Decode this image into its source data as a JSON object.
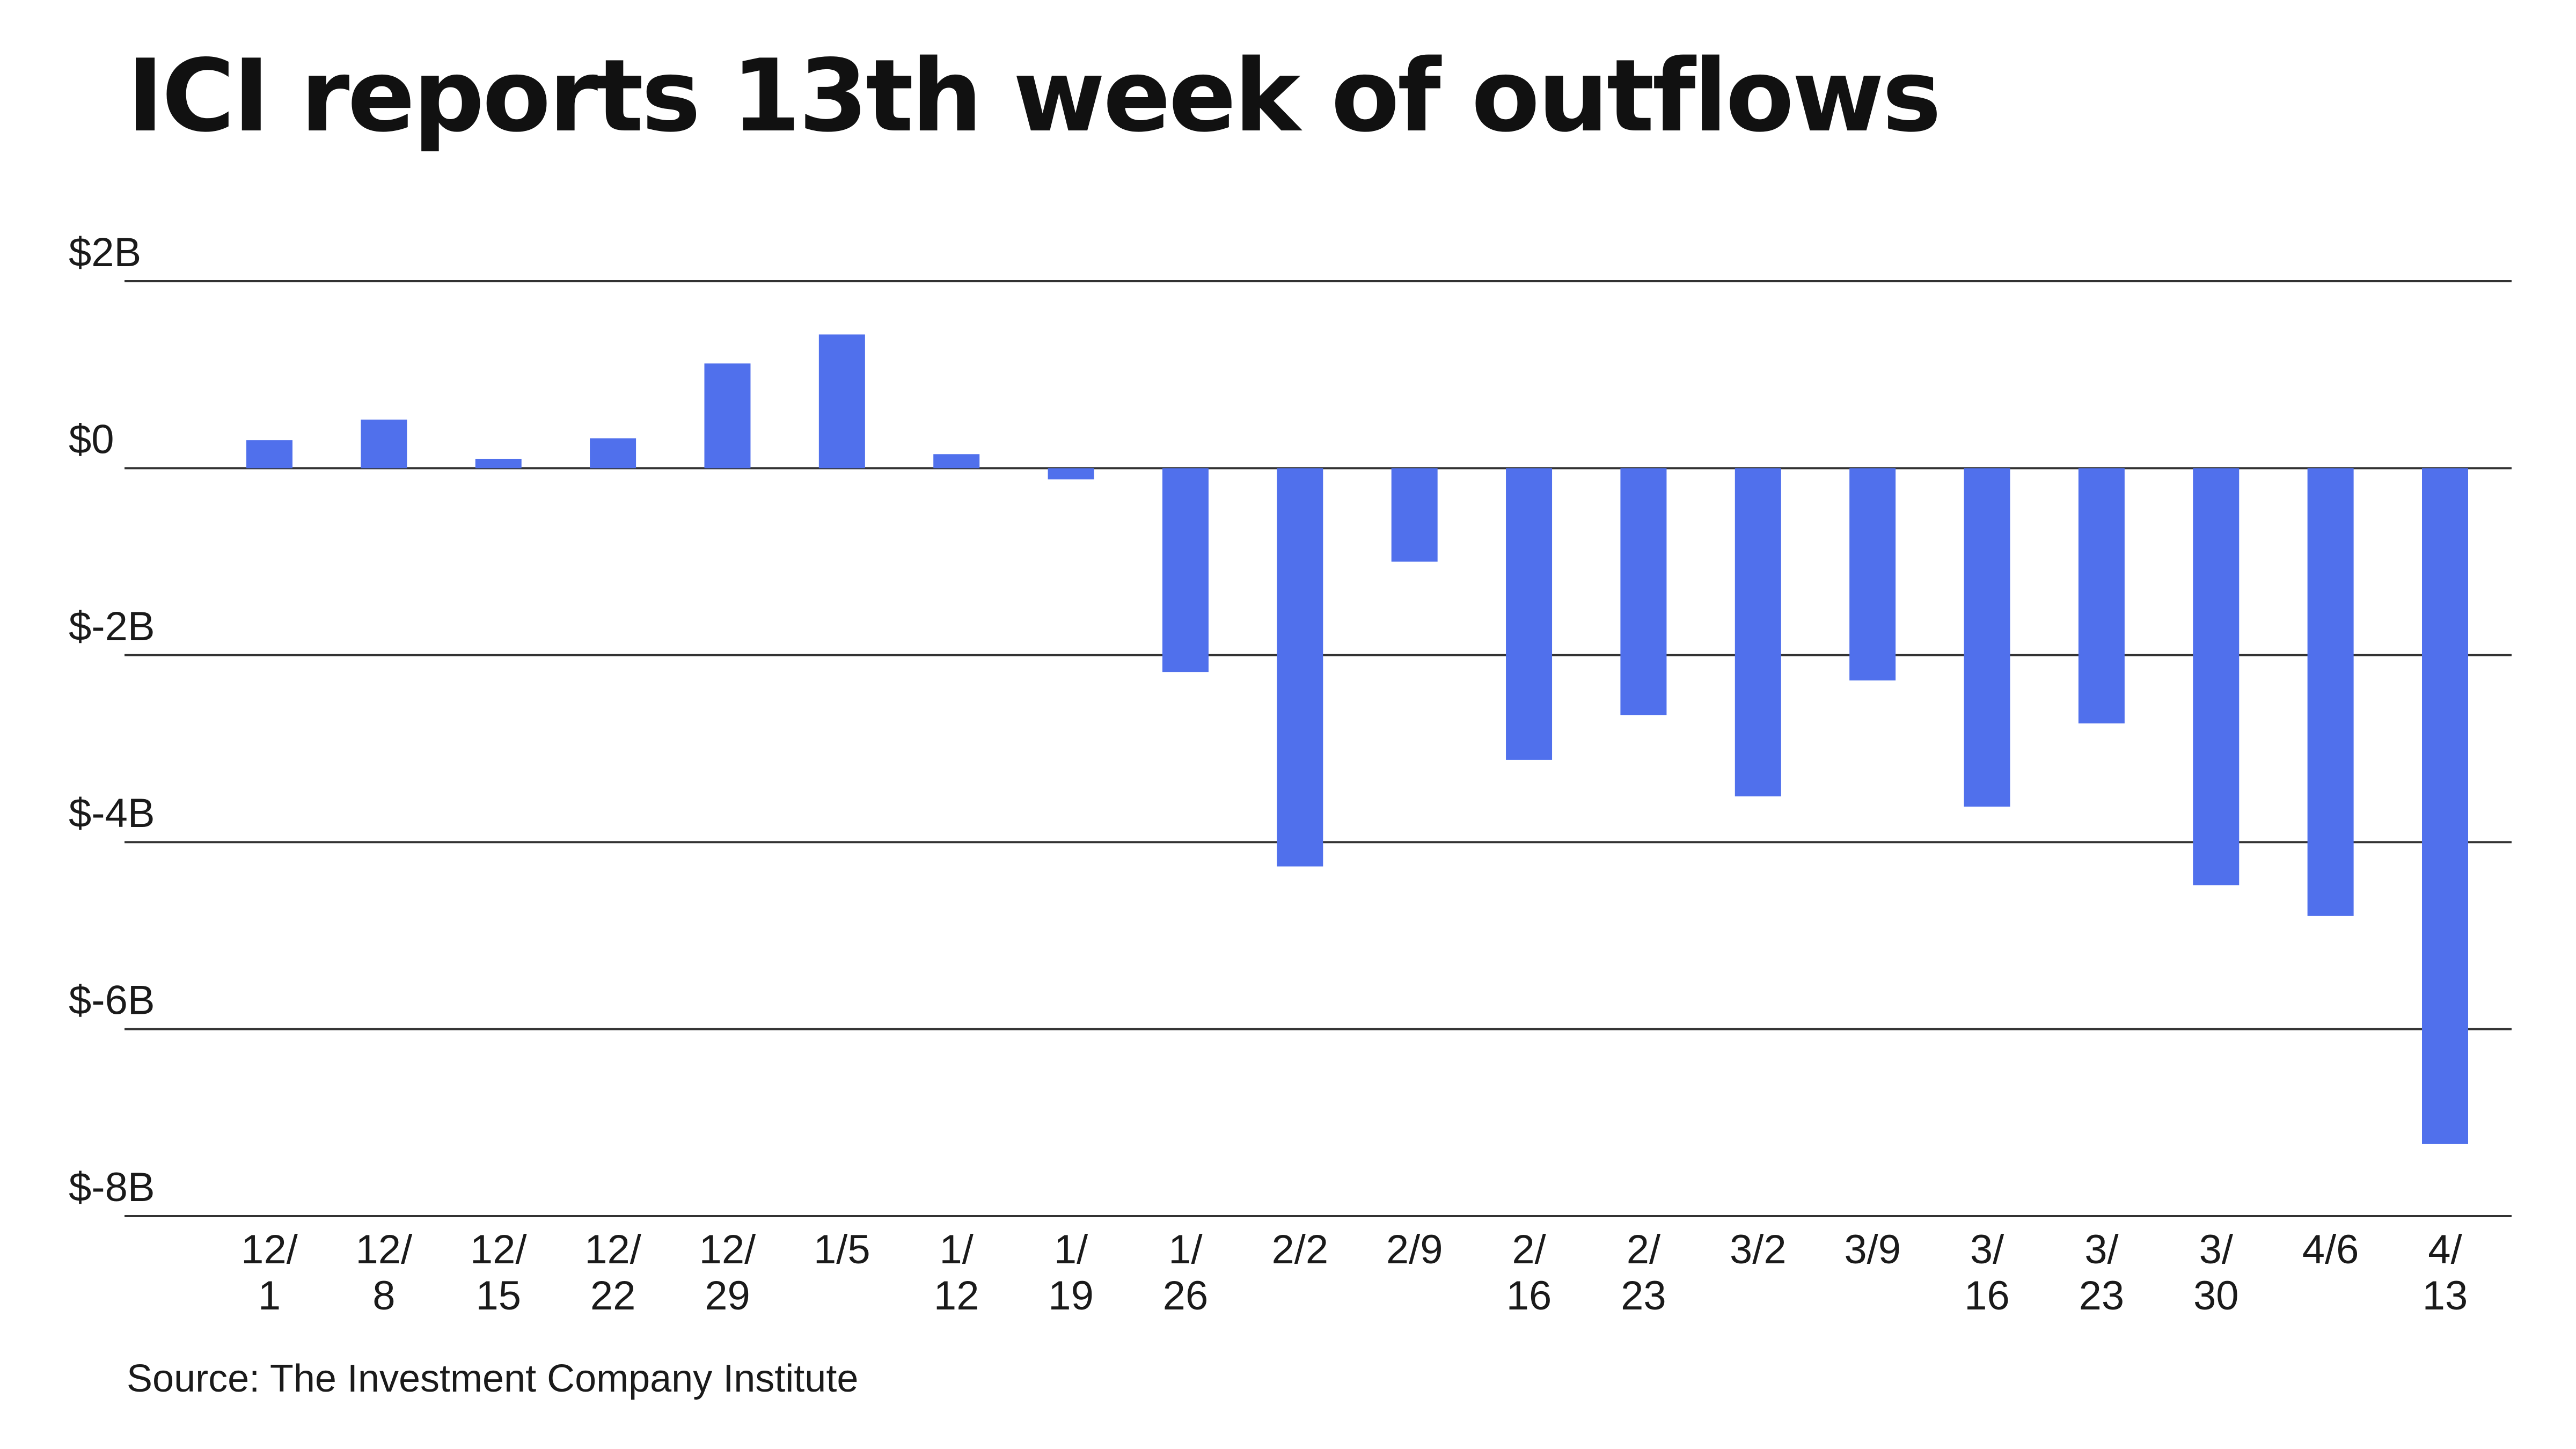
{
  "title": "ICI reports 13th week of outflows",
  "source": "Source: The Investment Company Institute",
  "colors": {
    "bar": "#5070ec",
    "grid": "#333333",
    "text": "#1a1a1a"
  },
  "chart_data": {
    "type": "bar",
    "title": "ICI reports 13th week of outflows",
    "xlabel": "",
    "ylabel": "",
    "ylim": [
      -8,
      2
    ],
    "y_ticks": [
      2,
      0,
      -2,
      -4,
      -6,
      -8
    ],
    "y_tick_labels": [
      "$2B",
      "$0",
      "$-2B",
      "$-4B",
      "$-6B",
      "$-8B"
    ],
    "grid": true,
    "categories": [
      [
        "12/",
        "1"
      ],
      [
        "12/",
        "8"
      ],
      [
        "12/",
        "15"
      ],
      [
        "12/",
        "22"
      ],
      [
        "12/",
        "29"
      ],
      [
        "1/5"
      ],
      [
        "1/",
        "12"
      ],
      [
        "1/",
        "19"
      ],
      [
        "1/",
        "26"
      ],
      [
        "2/2"
      ],
      [
        "2/9"
      ],
      [
        "2/",
        "16"
      ],
      [
        "2/",
        "23"
      ],
      [
        "3/2"
      ],
      [
        "3/9"
      ],
      [
        "3/",
        "16"
      ],
      [
        "3/",
        "23"
      ],
      [
        "3/",
        "30"
      ],
      [
        "4/6"
      ],
      [
        "4/",
        "13"
      ]
    ],
    "values": [
      0.3,
      0.52,
      0.1,
      0.32,
      1.12,
      1.43,
      0.15,
      -0.12,
      -2.18,
      -4.26,
      -1.0,
      -3.12,
      -2.64,
      -3.51,
      -2.27,
      -3.62,
      -2.73,
      -4.46,
      -4.79,
      -7.23
    ]
  }
}
